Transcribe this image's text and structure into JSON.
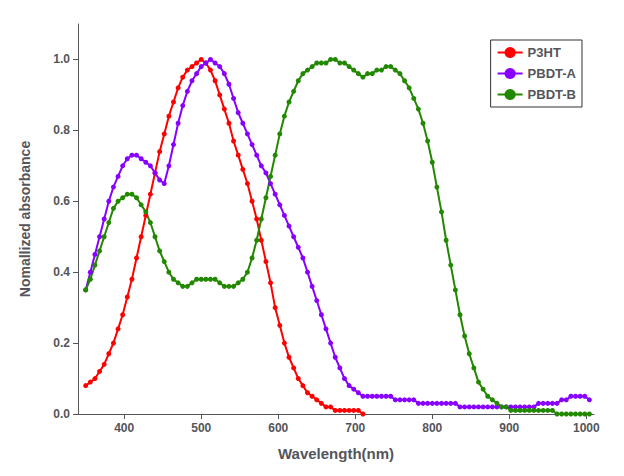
{
  "chart_data": {
    "type": "line",
    "xlabel": "Wavelength(nm)",
    "ylabel": "Nomallized absorbance",
    "xlim": [
      340,
      1010
    ],
    "ylim": [
      0,
      1.1
    ],
    "xticks": [
      400,
      500,
      600,
      700,
      800,
      900,
      1000
    ],
    "yticks": [
      {
        "value": 0.0,
        "label": "0.0"
      },
      0.2,
      0.4,
      0.6,
      0.8,
      {
        "value": 1.0,
        "label": "1.0"
      }
    ],
    "grid": false,
    "legend": "upper right",
    "marker": "circle",
    "line_style": "solid",
    "series": [
      {
        "name": "P3HT",
        "color": "#ff0000",
        "x": [
          350,
          356,
          362,
          368,
          374,
          380,
          386,
          392,
          398,
          404,
          410,
          416,
          422,
          428,
          434,
          440,
          446,
          452,
          458,
          464,
          470,
          476,
          482,
          488,
          494,
          500,
          506,
          512,
          518,
          524,
          530,
          536,
          542,
          548,
          554,
          560,
          566,
          572,
          578,
          584,
          590,
          596,
          602,
          608,
          614,
          620,
          626,
          632,
          638,
          644,
          650,
          656,
          662,
          668,
          674,
          680,
          686,
          692,
          698,
          704,
          710
        ],
        "values": [
          0.08,
          0.09,
          0.1,
          0.12,
          0.14,
          0.17,
          0.2,
          0.24,
          0.28,
          0.33,
          0.38,
          0.44,
          0.5,
          0.56,
          0.62,
          0.68,
          0.74,
          0.79,
          0.84,
          0.88,
          0.92,
          0.95,
          0.97,
          0.98,
          0.99,
          1.0,
          0.99,
          0.97,
          0.94,
          0.9,
          0.86,
          0.82,
          0.77,
          0.73,
          0.69,
          0.65,
          0.6,
          0.55,
          0.49,
          0.43,
          0.37,
          0.3,
          0.25,
          0.2,
          0.16,
          0.13,
          0.1,
          0.08,
          0.06,
          0.05,
          0.04,
          0.03,
          0.02,
          0.02,
          0.01,
          0.01,
          0.01,
          0.01,
          0.01,
          0.01,
          0.0
        ]
      },
      {
        "name": "PBDT-A",
        "color": "#8800ff",
        "x": [
          350,
          356,
          362,
          368,
          374,
          380,
          386,
          392,
          398,
          404,
          410,
          416,
          422,
          428,
          434,
          440,
          446,
          452,
          458,
          464,
          470,
          476,
          482,
          488,
          494,
          500,
          506,
          512,
          518,
          524,
          530,
          536,
          542,
          548,
          554,
          560,
          566,
          572,
          578,
          584,
          590,
          596,
          602,
          608,
          614,
          620,
          626,
          632,
          638,
          644,
          650,
          656,
          662,
          668,
          674,
          680,
          686,
          692,
          698,
          704,
          710,
          716,
          722,
          728,
          734,
          740,
          746,
          752,
          758,
          764,
          770,
          776,
          782,
          788,
          794,
          800,
          806,
          812,
          818,
          824,
          830,
          836,
          842,
          848,
          854,
          860,
          866,
          872,
          878,
          884,
          890,
          896,
          902,
          908,
          914,
          920,
          926,
          932,
          938,
          944,
          950,
          956,
          962,
          968,
          974,
          980,
          986,
          992,
          998,
          1004
        ],
        "values": [
          0.35,
          0.4,
          0.45,
          0.5,
          0.55,
          0.6,
          0.64,
          0.67,
          0.7,
          0.72,
          0.73,
          0.73,
          0.72,
          0.71,
          0.7,
          0.68,
          0.66,
          0.65,
          0.7,
          0.76,
          0.82,
          0.87,
          0.91,
          0.94,
          0.96,
          0.98,
          0.99,
          1.0,
          0.99,
          0.98,
          0.96,
          0.93,
          0.89,
          0.85,
          0.82,
          0.79,
          0.76,
          0.73,
          0.7,
          0.68,
          0.65,
          0.62,
          0.59,
          0.56,
          0.53,
          0.5,
          0.47,
          0.44,
          0.4,
          0.36,
          0.32,
          0.28,
          0.24,
          0.2,
          0.16,
          0.13,
          0.1,
          0.08,
          0.07,
          0.06,
          0.05,
          0.05,
          0.05,
          0.05,
          0.05,
          0.05,
          0.05,
          0.04,
          0.04,
          0.04,
          0.04,
          0.04,
          0.03,
          0.03,
          0.03,
          0.03,
          0.03,
          0.03,
          0.03,
          0.03,
          0.03,
          0.02,
          0.02,
          0.02,
          0.02,
          0.02,
          0.02,
          0.02,
          0.02,
          0.02,
          0.02,
          0.02,
          0.02,
          0.02,
          0.02,
          0.02,
          0.02,
          0.02,
          0.03,
          0.03,
          0.03,
          0.03,
          0.03,
          0.04,
          0.04,
          0.05,
          0.05,
          0.05,
          0.05,
          0.04
        ]
      },
      {
        "name": "PBDT-B",
        "color": "#228800",
        "x": [
          350,
          356,
          362,
          368,
          374,
          380,
          386,
          392,
          398,
          404,
          410,
          416,
          422,
          428,
          434,
          440,
          446,
          452,
          458,
          464,
          470,
          476,
          482,
          488,
          494,
          500,
          506,
          512,
          518,
          524,
          530,
          536,
          542,
          548,
          554,
          560,
          566,
          572,
          578,
          584,
          590,
          596,
          602,
          608,
          614,
          620,
          626,
          632,
          638,
          644,
          650,
          656,
          662,
          668,
          674,
          680,
          686,
          692,
          698,
          704,
          710,
          716,
          722,
          728,
          734,
          740,
          746,
          752,
          758,
          764,
          770,
          776,
          782,
          788,
          794,
          800,
          806,
          812,
          818,
          824,
          830,
          836,
          842,
          848,
          854,
          860,
          866,
          872,
          878,
          884,
          890,
          896,
          902,
          908,
          914,
          920,
          926,
          932,
          938,
          944,
          950,
          956,
          962,
          968,
          974,
          980,
          986,
          992,
          998,
          1004
        ],
        "values": [
          0.35,
          0.38,
          0.42,
          0.46,
          0.5,
          0.54,
          0.58,
          0.6,
          0.61,
          0.62,
          0.62,
          0.61,
          0.59,
          0.57,
          0.54,
          0.5,
          0.46,
          0.43,
          0.4,
          0.38,
          0.37,
          0.36,
          0.36,
          0.37,
          0.38,
          0.38,
          0.38,
          0.38,
          0.38,
          0.37,
          0.36,
          0.36,
          0.36,
          0.37,
          0.38,
          0.4,
          0.44,
          0.49,
          0.55,
          0.61,
          0.67,
          0.73,
          0.79,
          0.84,
          0.88,
          0.91,
          0.94,
          0.96,
          0.97,
          0.98,
          0.99,
          0.99,
          0.99,
          1.0,
          1.0,
          0.99,
          0.99,
          0.98,
          0.97,
          0.96,
          0.95,
          0.96,
          0.96,
          0.97,
          0.97,
          0.98,
          0.98,
          0.97,
          0.96,
          0.94,
          0.92,
          0.89,
          0.86,
          0.82,
          0.77,
          0.71,
          0.64,
          0.57,
          0.49,
          0.42,
          0.35,
          0.28,
          0.22,
          0.17,
          0.13,
          0.09,
          0.07,
          0.05,
          0.04,
          0.03,
          0.02,
          0.02,
          0.01,
          0.01,
          0.01,
          0.01,
          0.01,
          0.01,
          0.01,
          0.01,
          0.01,
          0.01,
          0.0,
          0.0,
          0.0,
          0.0,
          0.0,
          0.0,
          0.0,
          0.0
        ]
      }
    ]
  }
}
